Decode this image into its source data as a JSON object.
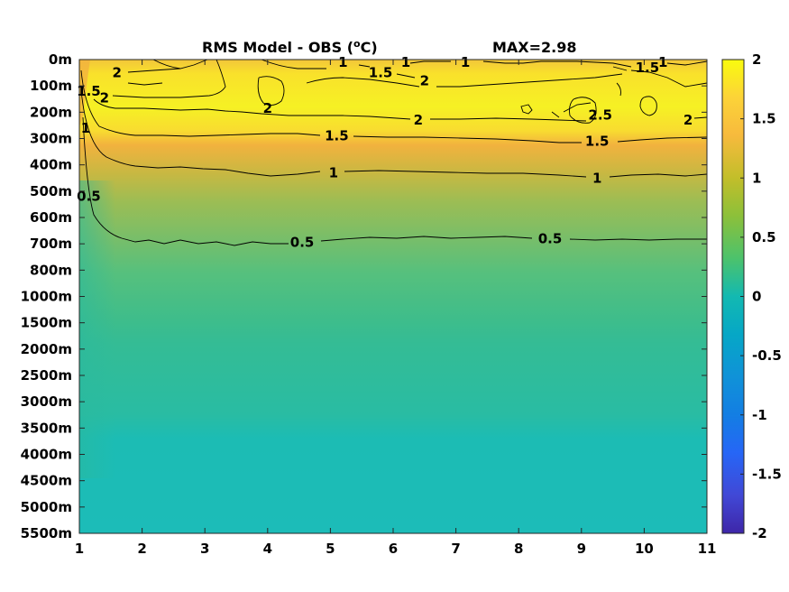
{
  "chart_data": {
    "type": "heatmap",
    "title": "RMS Model - OBS (",
    "title_unit_sup": "o",
    "title_unit_tail": "C)",
    "annotation": "MAX=2.98",
    "x_ticks": [
      "1",
      "2",
      "3",
      "4",
      "5",
      "6",
      "7",
      "8",
      "9",
      "10",
      "11"
    ],
    "xlim": [
      1,
      11
    ],
    "y_ticks": [
      "0m",
      "100m",
      "200m",
      "300m",
      "400m",
      "500m",
      "600m",
      "700m",
      "800m",
      "1000m",
      "1500m",
      "2000m",
      "2500m",
      "3000m",
      "3500m",
      "4000m",
      "4500m",
      "5000m",
      "5500m"
    ],
    "colorbar": {
      "range": [
        -2,
        2
      ],
      "ticks": [
        "2",
        "1.5",
        "1",
        "0.5",
        "0",
        "-0.5",
        "-1",
        "-1.5",
        "-2"
      ],
      "colormap": "parula"
    },
    "field_by_depth_level": [
      1.9,
      2.1,
      2.2,
      1.6,
      1.2,
      0.95,
      0.75,
      0.55,
      0.5,
      0.45,
      0.35,
      0.3,
      0.28,
      0.26,
      0.24,
      0.2,
      0.15,
      0.15,
      0.15
    ],
    "contour_levels": [
      0.5,
      1,
      1.5,
      2,
      2.5
    ],
    "contour_labels": [
      {
        "text": "2",
        "x": 1.6,
        "depth_level": 0.5
      },
      {
        "text": "1",
        "x": 5.2,
        "depth_level": 0.1
      },
      {
        "text": "1.5",
        "x": 5.8,
        "depth_level": 0.5
      },
      {
        "text": "1",
        "x": 6.2,
        "depth_level": 0.1
      },
      {
        "text": "1",
        "x": 7.15,
        "depth_level": 0.1
      },
      {
        "text": "2",
        "x": 6.5,
        "depth_level": 0.8
      },
      {
        "text": "1.5",
        "x": 10.05,
        "depth_level": 0.3
      },
      {
        "text": "1",
        "x": 10.3,
        "depth_level": 0.1
      },
      {
        "text": "1.5",
        "x": 1.15,
        "depth_level": 1.2
      },
      {
        "text": "2",
        "x": 1.4,
        "depth_level": 1.45
      },
      {
        "text": "2",
        "x": 4.0,
        "depth_level": 1.85
      },
      {
        "text": "2",
        "x": 6.4,
        "depth_level": 2.3
      },
      {
        "text": "2.5",
        "x": 9.3,
        "depth_level": 2.1
      },
      {
        "text": "2",
        "x": 10.7,
        "depth_level": 2.3
      },
      {
        "text": "1",
        "x": 1.1,
        "depth_level": 2.6
      },
      {
        "text": "1.5",
        "x": 5.1,
        "depth_level": 2.9
      },
      {
        "text": "1.5",
        "x": 9.25,
        "depth_level": 3.1
      },
      {
        "text": "1",
        "x": 5.05,
        "depth_level": 4.3
      },
      {
        "text": "1",
        "x": 9.25,
        "depth_level": 4.5
      },
      {
        "text": "0.5",
        "x": 1.15,
        "depth_level": 5.2
      },
      {
        "text": "0.5",
        "x": 4.55,
        "depth_level": 6.95
      },
      {
        "text": "0.5",
        "x": 8.5,
        "depth_level": 6.8
      }
    ]
  }
}
